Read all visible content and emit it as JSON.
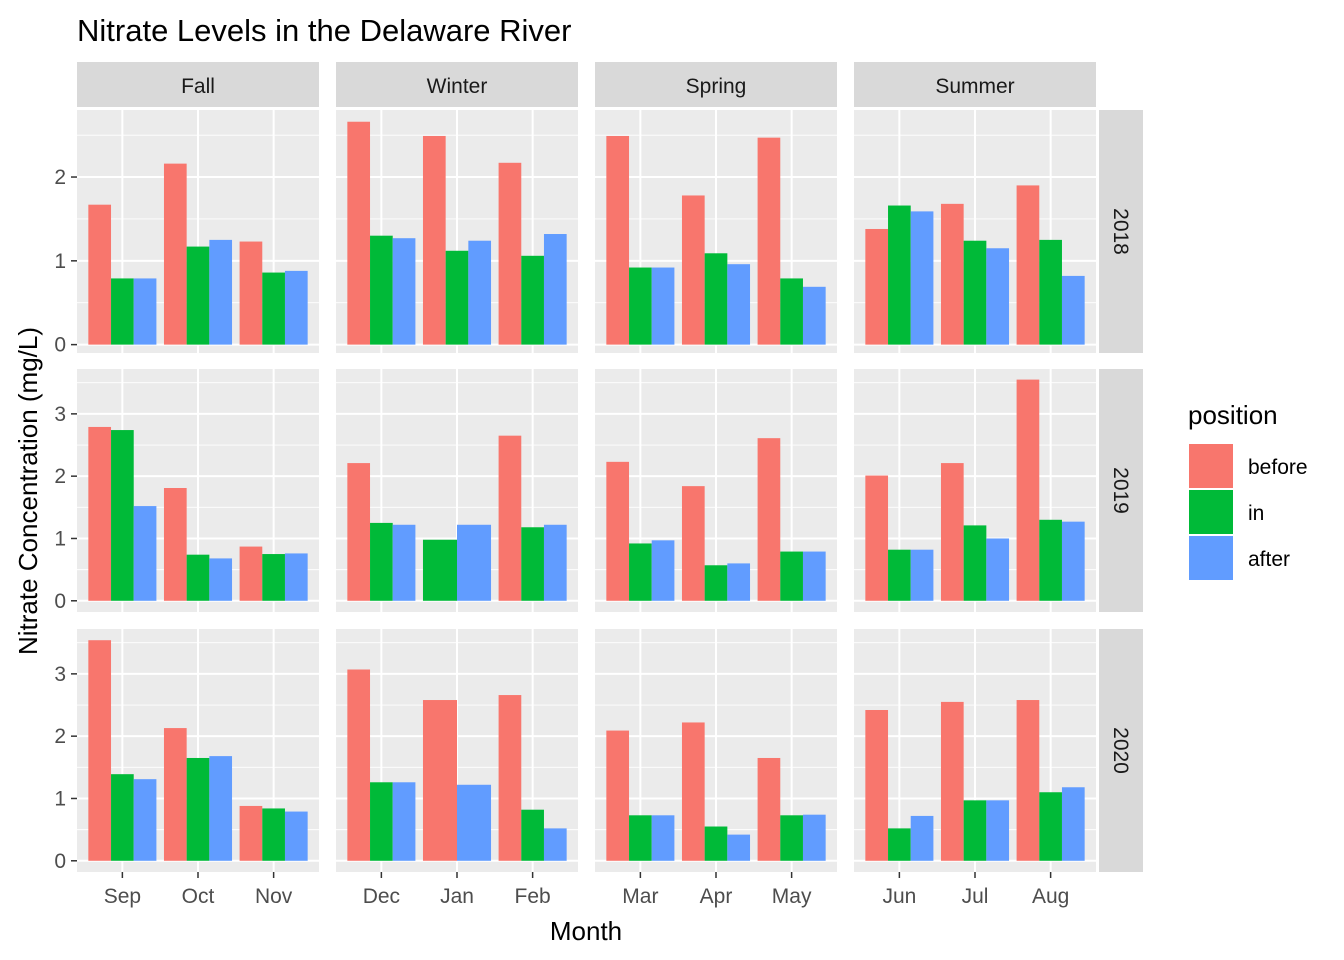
{
  "chart_data": {
    "type": "bar",
    "title": "Nitrate Levels in the Delaware River",
    "xlabel": "Month",
    "ylabel": "Nitrate Concentration (mg/L)",
    "legend": {
      "title": "position",
      "placement": "right",
      "entries": [
        "before",
        "in",
        "after"
      ]
    },
    "colors": {
      "before": "#F8766D",
      "in": "#00BA38",
      "after": "#619CFF"
    },
    "facet_columns": [
      "Fall",
      "Winter",
      "Spring",
      "Summer"
    ],
    "facet_rows": [
      "2018",
      "2019",
      "2020"
    ],
    "months": [
      [
        "Sep",
        "Oct",
        "Nov"
      ],
      [
        "Dec",
        "Jan",
        "Feb"
      ],
      [
        "Mar",
        "Apr",
        "May"
      ],
      [
        "Jun",
        "Jul",
        "Aug"
      ]
    ],
    "row_y_ticks": [
      [
        0,
        1,
        2
      ],
      [
        0,
        1,
        2,
        3
      ],
      [
        0,
        1,
        2,
        3
      ]
    ],
    "row_ylim": [
      [
        -0.1,
        2.8
      ],
      [
        -0.18,
        3.72
      ],
      [
        -0.18,
        3.72
      ]
    ],
    "grid": true,
    "values": {
      "2018": {
        "Fall": [
          [
            1.67,
            0.79,
            0.79
          ],
          [
            2.16,
            1.17,
            1.25
          ],
          [
            1.23,
            0.86,
            0.88
          ]
        ],
        "Winter": [
          [
            2.66,
            1.3,
            1.27
          ],
          [
            2.49,
            1.12,
            1.24
          ],
          [
            2.17,
            1.06,
            1.32
          ]
        ],
        "Spring": [
          [
            2.49,
            0.92,
            0.92
          ],
          [
            1.78,
            1.09,
            0.96
          ],
          [
            2.47,
            0.79,
            0.69
          ]
        ],
        "Summer": [
          [
            1.38,
            1.66,
            1.59
          ],
          [
            1.68,
            1.24,
            1.15
          ],
          [
            1.9,
            1.25,
            0.82
          ]
        ]
      },
      "2019": {
        "Fall": [
          [
            2.79,
            2.74,
            1.52
          ],
          [
            1.81,
            0.74,
            0.68
          ],
          [
            0.87,
            0.75,
            0.76
          ]
        ],
        "Winter": [
          [
            2.21,
            1.25,
            1.22
          ],
          [
            null,
            0.98,
            1.22
          ],
          [
            2.65,
            1.18,
            1.22
          ]
        ],
        "Spring": [
          [
            2.23,
            0.92,
            0.97
          ],
          [
            1.84,
            0.57,
            0.6
          ],
          [
            2.61,
            0.79,
            0.79
          ]
        ],
        "Summer": [
          [
            2.01,
            0.82,
            0.82
          ],
          [
            2.21,
            1.21,
            1.0
          ],
          [
            3.55,
            1.3,
            1.27
          ]
        ]
      },
      "2020": {
        "Fall": [
          [
            3.54,
            1.39,
            1.31
          ],
          [
            2.13,
            1.65,
            1.68
          ],
          [
            0.88,
            0.84,
            0.79
          ]
        ],
        "Winter": [
          [
            3.07,
            1.26,
            1.26
          ],
          [
            2.58,
            null,
            1.22
          ],
          [
            2.66,
            0.82,
            0.52
          ]
        ],
        "Spring": [
          [
            2.09,
            0.73,
            0.73
          ],
          [
            2.22,
            0.55,
            0.42
          ],
          [
            1.65,
            0.73,
            0.74
          ]
        ],
        "Summer": [
          [
            2.42,
            0.52,
            0.72
          ],
          [
            2.55,
            0.97,
            0.97
          ],
          [
            2.58,
            1.1,
            1.18
          ]
        ]
      }
    }
  }
}
